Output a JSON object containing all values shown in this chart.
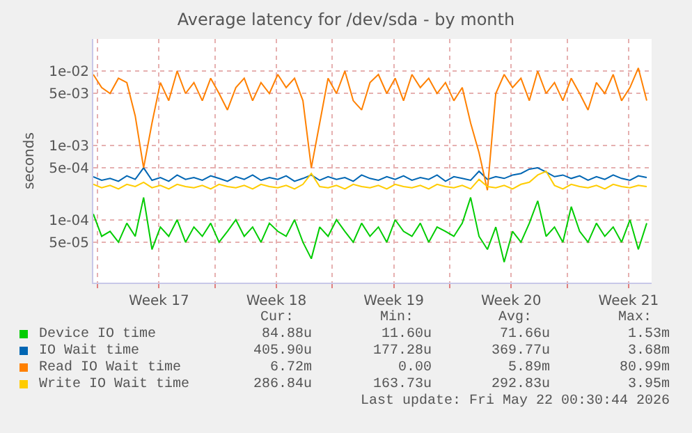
{
  "chart_data": {
    "type": "line",
    "title": "Average latency for /dev/sda - by month",
    "ylabel": "seconds",
    "x": [
      "2026-04-19T18:00",
      "2026-04-20T06:00",
      "2026-04-20T18:00",
      "2026-04-21T06:00",
      "2026-04-21T18:00",
      "2026-04-22T06:00",
      "2026-04-22T18:00",
      "2026-04-23T06:00",
      "2026-04-23T18:00",
      "2026-04-24T06:00",
      "2026-04-24T18:00",
      "2026-04-25T06:00",
      "2026-04-25T18:00",
      "2026-04-26T06:00",
      "2026-04-26T18:00",
      "2026-04-27T06:00",
      "2026-04-27T18:00",
      "2026-04-28T06:00",
      "2026-04-28T18:00",
      "2026-04-29T06:00",
      "2026-04-29T18:00",
      "2026-04-30T06:00",
      "2026-04-30T18:00",
      "2026-05-01T06:00",
      "2026-05-01T18:00",
      "2026-05-02T06:00",
      "2026-05-02T18:00",
      "2026-05-03T06:00",
      "2026-05-03T18:00",
      "2026-05-04T06:00",
      "2026-05-04T18:00",
      "2026-05-05T06:00",
      "2026-05-05T18:00",
      "2026-05-06T06:00",
      "2026-05-06T18:00",
      "2026-05-07T06:00",
      "2026-05-07T18:00",
      "2026-05-08T06:00",
      "2026-05-08T18:00",
      "2026-05-09T06:00",
      "2026-05-09T18:00",
      "2026-05-10T06:00",
      "2026-05-10T18:00",
      "2026-05-11T06:00",
      "2026-05-11T18:00",
      "2026-05-12T06:00",
      "2026-05-12T18:00",
      "2026-05-13T06:00",
      "2026-05-13T18:00",
      "2026-05-14T06:00",
      "2026-05-14T18:00",
      "2026-05-15T06:00",
      "2026-05-15T18:00",
      "2026-05-16T06:00",
      "2026-05-16T18:00",
      "2026-05-17T06:00",
      "2026-05-17T18:00",
      "2026-05-18T06:00",
      "2026-05-18T18:00",
      "2026-05-19T06:00",
      "2026-05-19T18:00",
      "2026-05-20T06:00",
      "2026-05-20T18:00",
      "2026-05-21T06:00",
      "2026-05-21T18:00",
      "2026-05-22T06:00",
      "2026-05-22T18:00"
    ],
    "series": [
      {
        "name": "Device IO time",
        "color": "#00cc00",
        "values": [
          0.00012,
          6e-05,
          7e-05,
          5e-05,
          9e-05,
          6e-05,
          0.0002,
          4e-05,
          8e-05,
          6e-05,
          0.0001,
          5e-05,
          8e-05,
          6e-05,
          9e-05,
          5e-05,
          7e-05,
          0.0001,
          6e-05,
          8e-05,
          5e-05,
          9e-05,
          7e-05,
          6e-05,
          0.0001,
          5e-05,
          3e-05,
          8e-05,
          6e-05,
          0.0001,
          7e-05,
          5e-05,
          9e-05,
          6e-05,
          8e-05,
          5e-05,
          0.0001,
          7e-05,
          6e-05,
          9e-05,
          5e-05,
          8e-05,
          7e-05,
          6e-05,
          9e-05,
          0.0002,
          6e-05,
          4e-05,
          8e-05,
          2.7e-05,
          7e-05,
          5e-05,
          9e-05,
          0.00018,
          6e-05,
          8e-05,
          5e-05,
          0.00015,
          7e-05,
          5e-05,
          9e-05,
          6e-05,
          8e-05,
          5e-05,
          0.0001,
          4e-05,
          9e-05
        ]
      },
      {
        "name": "IO Wait time",
        "color": "#0066b3",
        "values": [
          0.00038,
          0.00034,
          0.00036,
          0.00033,
          0.00039,
          0.00035,
          0.0005,
          0.00034,
          0.00037,
          0.00033,
          0.0004,
          0.00035,
          0.00037,
          0.00034,
          0.00039,
          0.00036,
          0.00033,
          0.00038,
          0.00035,
          0.0004,
          0.00034,
          0.00037,
          0.00035,
          0.00039,
          0.00033,
          0.00036,
          0.0004,
          0.00034,
          0.00038,
          0.00035,
          0.00037,
          0.00033,
          0.0004,
          0.00036,
          0.00034,
          0.00038,
          0.00035,
          0.00039,
          0.00034,
          0.00037,
          0.00035,
          0.0004,
          0.00033,
          0.00038,
          0.00036,
          0.00034,
          0.00045,
          0.00035,
          0.00038,
          0.00036,
          0.0004,
          0.00042,
          0.00048,
          0.0005,
          0.00044,
          0.00038,
          0.0004,
          0.00036,
          0.00039,
          0.00034,
          0.00038,
          0.00035,
          0.0004,
          0.00036,
          0.00034,
          0.00039,
          0.00037
        ]
      },
      {
        "name": "Read IO Wait time",
        "color": "#ff8000",
        "values": [
          0.009,
          0.006,
          0.005,
          0.008,
          0.007,
          0.0025,
          0.0005,
          0.002,
          0.007,
          0.004,
          0.01,
          0.005,
          0.007,
          0.004,
          0.008,
          0.005,
          0.003,
          0.006,
          0.008,
          0.004,
          0.007,
          0.005,
          0.009,
          0.006,
          0.008,
          0.004,
          0.0005,
          0.002,
          0.008,
          0.005,
          0.01,
          0.004,
          0.003,
          0.007,
          0.009,
          0.005,
          0.008,
          0.004,
          0.009,
          0.006,
          0.008,
          0.005,
          0.007,
          0.004,
          0.006,
          0.002,
          0.0008,
          0.00025,
          0.005,
          0.009,
          0.006,
          0.008,
          0.004,
          0.01,
          0.005,
          0.007,
          0.004,
          0.008,
          0.005,
          0.003,
          0.007,
          0.005,
          0.009,
          0.004,
          0.006,
          0.011,
          0.004
        ]
      },
      {
        "name": "Write IO Wait time",
        "color": "#ffcc00",
        "values": [
          0.0003,
          0.00027,
          0.00029,
          0.00026,
          0.0003,
          0.00028,
          0.00032,
          0.00027,
          0.00029,
          0.00026,
          0.0003,
          0.00028,
          0.00027,
          0.00029,
          0.00026,
          0.0003,
          0.00028,
          0.00027,
          0.00029,
          0.00026,
          0.0003,
          0.00028,
          0.00027,
          0.00029,
          0.00026,
          0.0003,
          0.00042,
          0.00028,
          0.00027,
          0.00029,
          0.00026,
          0.0003,
          0.00028,
          0.00027,
          0.00029,
          0.00026,
          0.0003,
          0.00028,
          0.00027,
          0.00029,
          0.00026,
          0.0003,
          0.00028,
          0.00027,
          0.00029,
          0.00026,
          0.00035,
          0.00028,
          0.00027,
          0.00029,
          0.00026,
          0.0003,
          0.00032,
          0.0004,
          0.00045,
          0.00029,
          0.00026,
          0.0003,
          0.00028,
          0.00027,
          0.00029,
          0.00026,
          0.0003,
          0.00028,
          0.00027,
          0.00029,
          0.00028
        ]
      }
    ],
    "xlim": [
      "2026-04-19T18:00",
      "2026-05-23T01:00"
    ],
    "xticks": [
      {
        "value": "2026-04-20",
        "label": null
      },
      {
        "value": "2026-04-23T16:00",
        "label": "Week 17"
      },
      {
        "value": "2026-04-27",
        "label": null
      },
      {
        "value": "2026-04-30T16:00",
        "label": "Week 18"
      },
      {
        "value": "2026-05-04",
        "label": null
      },
      {
        "value": "2026-05-07T16:00",
        "label": "Week 19"
      },
      {
        "value": "2026-05-11",
        "label": null
      },
      {
        "value": "2026-05-14T16:00",
        "label": "Week 20"
      },
      {
        "value": "2026-05-18",
        "label": null
      },
      {
        "value": "2026-05-21T16:00",
        "label": "Week 21"
      }
    ],
    "ylim": [
      1.43e-05,
      0.027
    ],
    "yticks": [
      {
        "value": 5e-05,
        "label": "5e-05"
      },
      {
        "value": 0.0001,
        "label": "1e-04"
      },
      {
        "value": 0.0005,
        "label": "5e-04"
      },
      {
        "value": 0.001,
        "label": "1e-03"
      },
      {
        "value": 0.005,
        "label": "5e-03"
      },
      {
        "value": 0.01,
        "label": "1e-02"
      }
    ],
    "log": true,
    "grid": true,
    "legend": "bottom",
    "marker": "none",
    "line_style": "solid",
    "annotations": [
      "Cur:",
      "Min:",
      "Avg:",
      "Max:",
      "84.88u",
      "11.60u",
      "71.66u",
      "1.53m",
      "405.90u",
      "177.28u",
      "369.77u",
      "3.68m",
      "6.72m",
      "0.00",
      "5.89m",
      "80.99m",
      "286.84u",
      "163.73u",
      "292.83u",
      "3.95m",
      "Last update: Fri May 22 00:30:44 2026"
    ]
  }
}
